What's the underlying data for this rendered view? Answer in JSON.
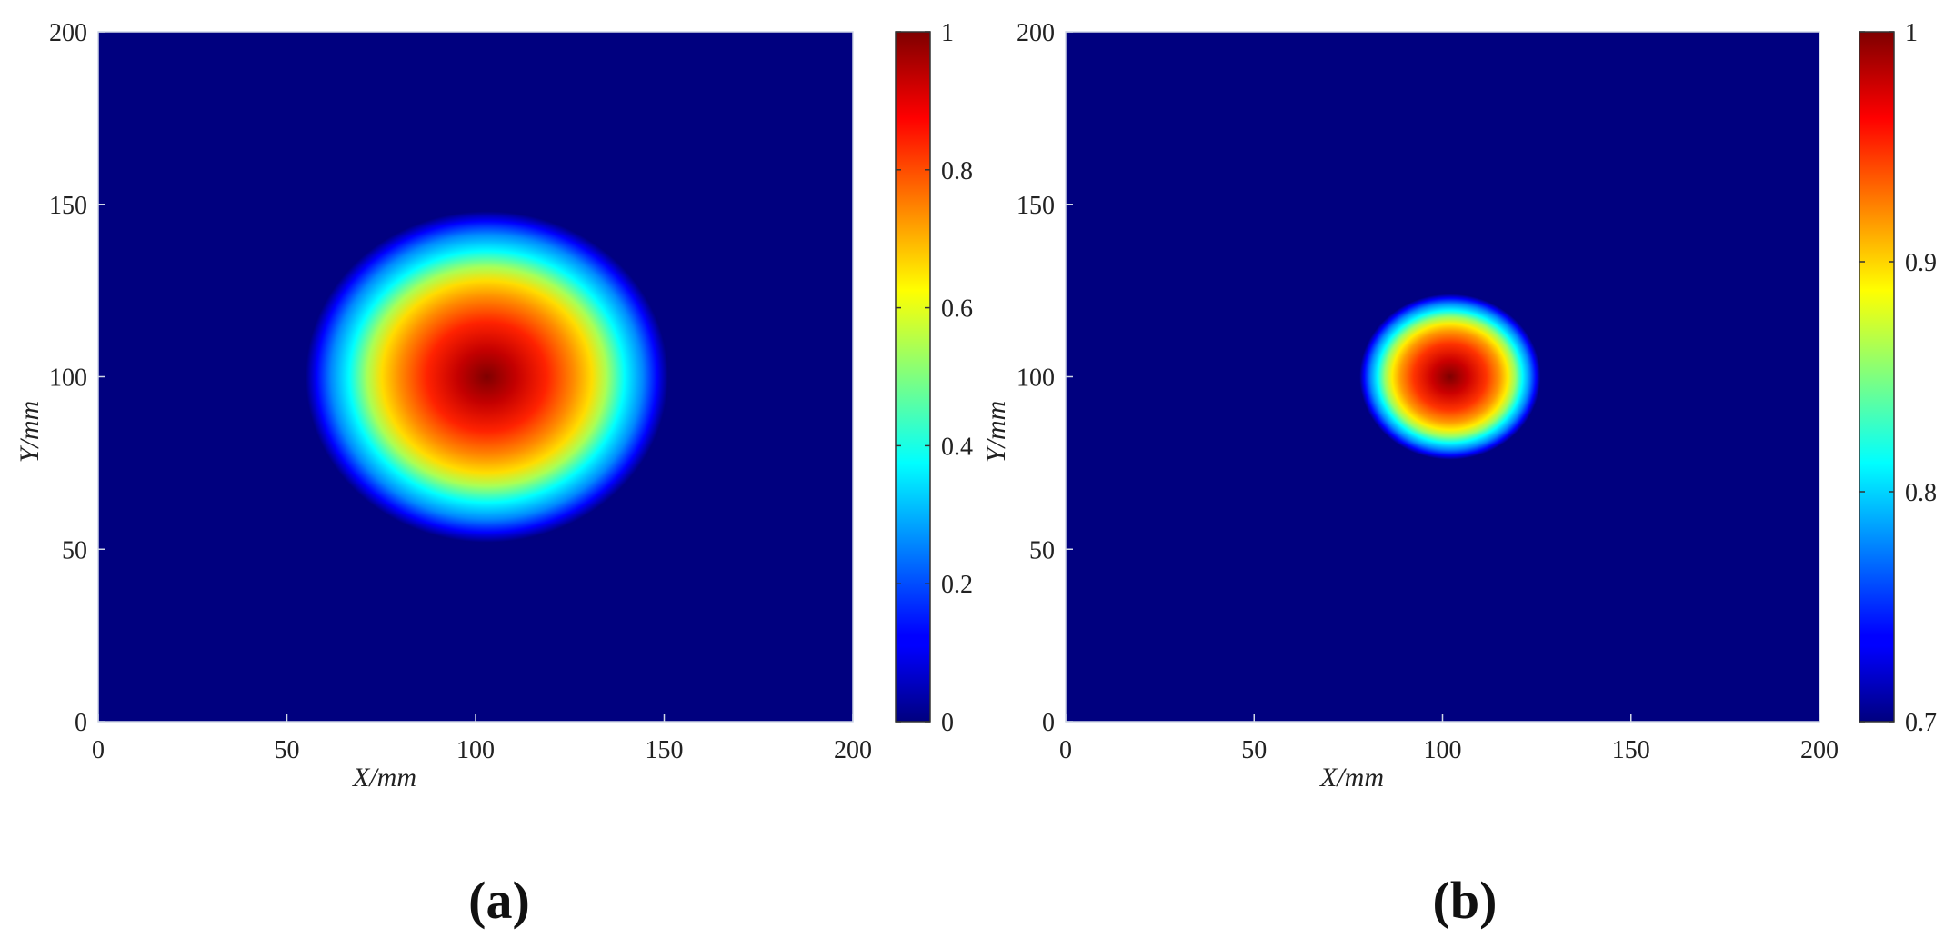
{
  "chart_data": [
    {
      "type": "heatmap",
      "panel_label": "(a)",
      "xlabel": "X/mm",
      "ylabel": "Y/mm",
      "xlim": [
        0,
        200
      ],
      "ylim": [
        0,
        200
      ],
      "xticks": [
        "0",
        "50",
        "100",
        "150",
        "200"
      ],
      "yticks": [
        "0",
        "50",
        "100",
        "150",
        "200"
      ],
      "colormap": "jet",
      "colorbar": {
        "min": 0,
        "max": 1,
        "ticks": [
          "0",
          "0.2",
          "0.4",
          "0.6",
          "0.8",
          "1"
        ]
      },
      "field": {
        "shape": "gaussian-spot",
        "center": [
          103,
          100
        ],
        "peak_value": 1,
        "background_value": 0,
        "outer_radius_mm": 48
      }
    },
    {
      "type": "heatmap",
      "panel_label": "(b)",
      "xlabel": "X/mm",
      "ylabel": "Y/mm",
      "xlim": [
        0,
        200
      ],
      "ylim": [
        0,
        200
      ],
      "xticks": [
        "0",
        "50",
        "100",
        "150",
        "200"
      ],
      "yticks": [
        "0",
        "50",
        "100",
        "150",
        "200"
      ],
      "colormap": "jet",
      "colorbar": {
        "min": 0.7,
        "max": 1,
        "ticks": [
          "0.7",
          "0.8",
          "0.9",
          "1"
        ]
      },
      "field": {
        "shape": "gaussian-spot",
        "center": [
          102,
          100
        ],
        "peak_value": 1,
        "background_value": 0.7,
        "outer_radius_mm": 24
      }
    }
  ]
}
